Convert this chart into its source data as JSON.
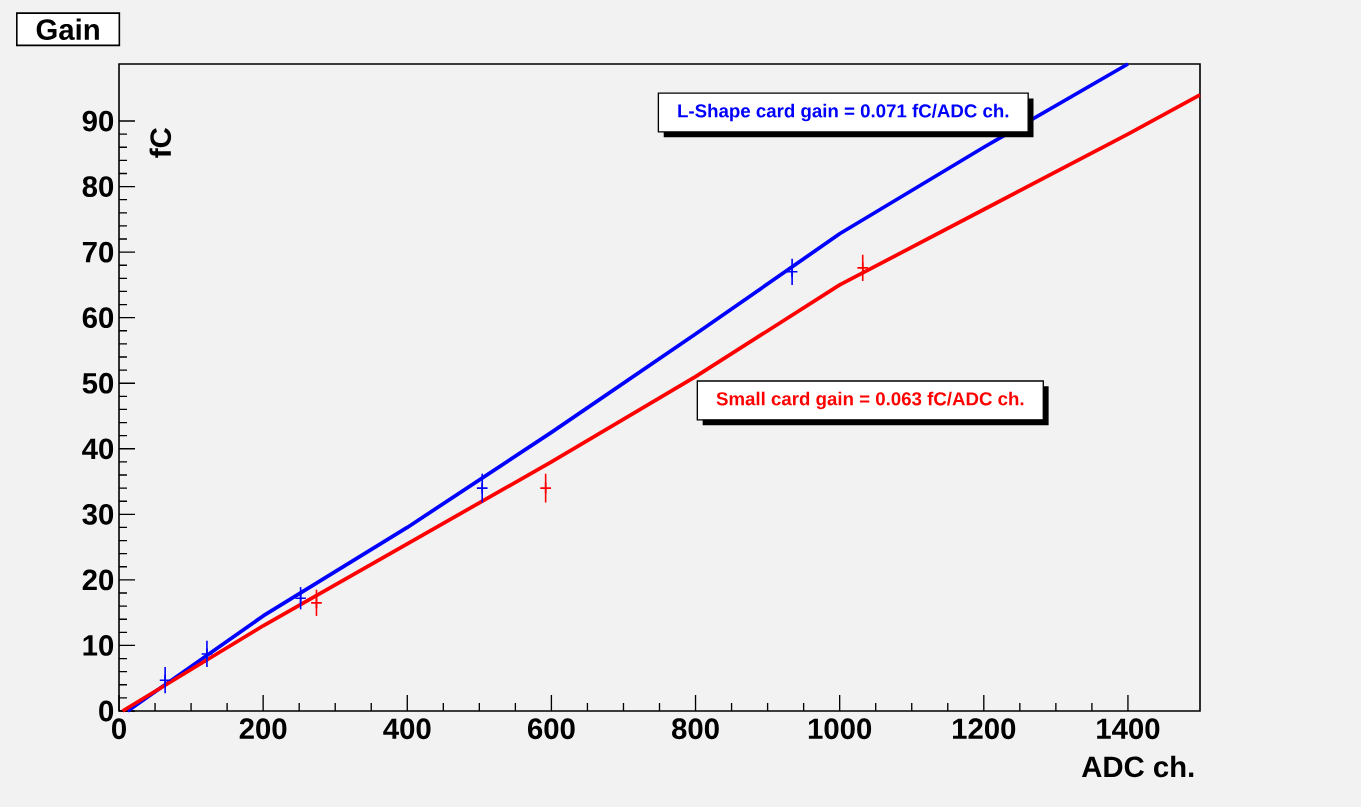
{
  "chart_data": {
    "type": "line",
    "title": "Gain",
    "xlabel": "ADC ch.",
    "ylabel": "fC",
    "xlim": [
      0,
      1500
    ],
    "ylim": [
      0,
      98.7
    ],
    "xticks": [
      0,
      200,
      400,
      600,
      800,
      1000,
      1200,
      1400
    ],
    "yticks": [
      0,
      10,
      20,
      30,
      40,
      50,
      60,
      70,
      80,
      90
    ],
    "grid": false,
    "series": [
      {
        "name": "L-Shape card gain = 0.071 fC/ADC ch.",
        "color": "#0000ff",
        "x": [
          12,
          200,
          400,
          600,
          800,
          1000,
          1200,
          1400
        ],
        "values": [
          0,
          14.5,
          28,
          42.5,
          57.5,
          72.8,
          86,
          98.7
        ]
      },
      {
        "name": "Small card gain = 0.063 fC/ADC ch.",
        "color": "#ff0000",
        "x": [
          5,
          200,
          400,
          600,
          800,
          1000,
          1200,
          1400,
          1500
        ],
        "values": [
          0,
          13,
          25.5,
          38,
          51,
          65,
          76.5,
          88,
          94
        ]
      },
      {
        "type": "scatter",
        "color": "#0000ff",
        "x": [
          64,
          122,
          252,
          504,
          934
        ],
        "values": [
          4.7,
          8.7,
          17.2,
          34,
          67
        ],
        "errors": [
          2,
          2,
          1.7,
          2.2,
          2
        ],
        "marker": "cross"
      },
      {
        "type": "scatter",
        "color": "#ff0000",
        "x": [
          274,
          592,
          1032
        ],
        "values": [
          16.5,
          34,
          67.6
        ],
        "errors": [
          2,
          2.2,
          2
        ],
        "marker": "cross"
      }
    ]
  }
}
